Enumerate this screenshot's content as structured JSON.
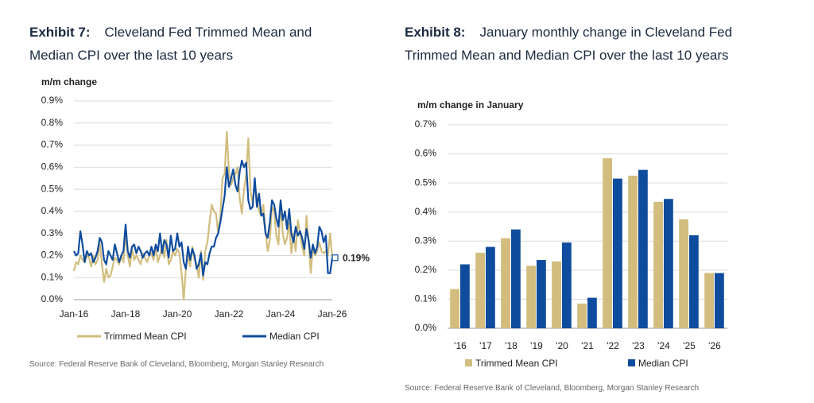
{
  "chart_data": [
    {
      "type": "line",
      "exhibit": "Exhibit 7:",
      "title": "Cleveland Fed Trimmed Mean and Median CPI over the last 10 years",
      "y_label": "m/m change",
      "source": "Source: Federal Reserve Bank of Cleveland, Bloomberg, Morgan Stanley Research",
      "categories": [
        "Jan-16",
        null,
        null,
        null,
        null,
        null,
        null,
        null,
        null,
        null,
        null,
        null,
        null,
        null,
        null,
        null,
        null,
        null,
        null,
        null,
        null,
        null,
        null,
        null,
        "Jan-18",
        null,
        null,
        null,
        null,
        null,
        null,
        null,
        null,
        null,
        null,
        null,
        null,
        null,
        null,
        null,
        null,
        null,
        null,
        null,
        null,
        null,
        null,
        null,
        "Jan-20",
        null,
        null,
        null,
        null,
        null,
        null,
        null,
        null,
        null,
        null,
        null,
        null,
        null,
        null,
        null,
        null,
        null,
        null,
        null,
        null,
        null,
        null,
        null,
        "Jan-22",
        null,
        null,
        null,
        null,
        null,
        null,
        null,
        null,
        null,
        null,
        null,
        null,
        null,
        null,
        null,
        null,
        null,
        null,
        null,
        null,
        null,
        null,
        null,
        "Jan-24",
        null,
        null,
        null,
        null,
        null,
        null,
        null,
        null,
        null,
        null,
        null,
        null,
        null,
        null,
        null,
        null,
        null,
        null,
        null,
        null,
        null,
        null,
        null,
        "Jan-26"
      ],
      "series": [
        {
          "name": "Trimmed Mean CPI",
          "color": "#d2bd7e",
          "values": [
            0.13,
            0.17,
            0.16,
            0.2,
            0.18,
            0.17,
            0.2,
            0.19,
            0.15,
            0.2,
            0.16,
            0.18,
            0.26,
            0.16,
            0.08,
            0.14,
            0.1,
            0.11,
            0.15,
            0.19,
            0.18,
            0.16,
            0.2,
            0.17,
            0.31,
            0.2,
            0.15,
            0.23,
            0.18,
            0.2,
            0.18,
            0.16,
            0.21,
            0.19,
            0.17,
            0.2,
            0.21,
            0.18,
            0.24,
            0.17,
            0.2,
            0.25,
            0.19,
            0.27,
            0.16,
            0.18,
            0.22,
            0.2,
            0.23,
            0.21,
            0.12,
            0.0,
            0.14,
            0.2,
            0.15,
            0.24,
            0.18,
            0.16,
            0.1,
            0.22,
            0.09,
            0.22,
            0.26,
            0.35,
            0.43,
            0.4,
            0.39,
            0.3,
            0.38,
            0.55,
            0.57,
            0.76,
            0.58,
            0.52,
            0.55,
            0.57,
            0.6,
            0.46,
            0.39,
            0.5,
            0.56,
            0.73,
            0.49,
            0.44,
            0.52,
            0.46,
            0.4,
            0.38,
            0.43,
            0.31,
            0.22,
            0.27,
            0.42,
            0.4,
            0.29,
            0.25,
            0.44,
            0.3,
            0.25,
            0.28,
            0.35,
            0.21,
            0.3,
            0.22,
            0.36,
            0.3,
            0.24,
            0.2,
            0.38,
            0.26,
            0.12,
            0.24,
            0.2,
            0.22,
            0.26,
            0.22,
            0.21,
            0.22,
            0.2,
            0.3,
            0.19
          ]
        },
        {
          "name": "Median CPI",
          "color": "#0f4c9e",
          "values": [
            0.22,
            0.2,
            0.21,
            0.31,
            0.25,
            0.17,
            0.22,
            0.2,
            0.21,
            0.17,
            0.19,
            0.22,
            0.28,
            0.26,
            0.18,
            0.16,
            0.22,
            0.2,
            0.18,
            0.25,
            0.21,
            0.17,
            0.2,
            0.22,
            0.34,
            0.22,
            0.19,
            0.24,
            0.25,
            0.21,
            0.24,
            0.22,
            0.19,
            0.21,
            0.22,
            0.2,
            0.24,
            0.2,
            0.25,
            0.22,
            0.3,
            0.21,
            0.27,
            0.25,
            0.19,
            0.29,
            0.22,
            0.23,
            0.3,
            0.24,
            0.26,
            0.17,
            0.14,
            0.24,
            0.18,
            0.23,
            0.2,
            0.14,
            0.16,
            0.21,
            0.11,
            0.17,
            0.16,
            0.21,
            0.24,
            0.24,
            0.28,
            0.3,
            0.35,
            0.41,
            0.47,
            0.6,
            0.51,
            0.55,
            0.59,
            0.52,
            0.49,
            0.58,
            0.63,
            0.6,
            0.62,
            0.45,
            0.41,
            0.42,
            0.55,
            0.42,
            0.48,
            0.38,
            0.39,
            0.3,
            0.28,
            0.35,
            0.45,
            0.43,
            0.37,
            0.33,
            0.45,
            0.36,
            0.4,
            0.32,
            0.41,
            0.3,
            0.26,
            0.33,
            0.29,
            0.31,
            0.28,
            0.23,
            0.32,
            0.27,
            0.19,
            0.25,
            0.21,
            0.24,
            0.33,
            0.31,
            0.26,
            0.29,
            0.12,
            0.12,
            0.19
          ]
        }
      ],
      "annotation": {
        "value": 0.19,
        "label": "0.19%"
      },
      "ylim": [
        0,
        0.9
      ],
      "yticks": [
        {
          "value": 0,
          "label": "0.0%"
        },
        {
          "value": 0.1,
          "label": "0.1%"
        },
        {
          "value": 0.2,
          "label": "0.2%"
        },
        {
          "value": 0.3,
          "label": "0.3%"
        },
        {
          "value": 0.4,
          "label": "0.4%"
        },
        {
          "value": 0.5,
          "label": "0.5%"
        },
        {
          "value": 0.6,
          "label": "0.6%"
        },
        {
          "value": 0.7,
          "label": "0.7%"
        },
        {
          "value": 0.8,
          "label": "0.8%"
        },
        {
          "value": 0.9,
          "label": "0.9%"
        }
      ],
      "grid": true
    },
    {
      "type": "bar",
      "exhibit": "Exhibit 8:",
      "title": "January monthly change in Cleveland Fed Trimmed Mean and Median CPI over the last 10 years",
      "y_label": "m/m change in January",
      "source": "Source: Federal Reserve Bank of Cleveland, Bloomberg, Morgan Stanley Research",
      "categories": [
        "'16",
        "'17",
        "'18",
        "'19",
        "'20",
        "'21",
        "'22",
        "'23",
        "'24",
        "'25",
        "'26"
      ],
      "series": [
        {
          "name": "Trimmed Mean CPI",
          "color": "#d2bd7e",
          "values": [
            0.135,
            0.26,
            0.31,
            0.215,
            0.23,
            0.085,
            0.585,
            0.525,
            0.435,
            0.375,
            0.19
          ]
        },
        {
          "name": "Median CPI",
          "color": "#0f4c9e",
          "values": [
            0.22,
            0.28,
            0.34,
            0.235,
            0.295,
            0.105,
            0.515,
            0.545,
            0.445,
            0.32,
            0.19
          ]
        }
      ],
      "ylim": [
        0,
        0.7
      ],
      "yticks": [
        {
          "value": 0,
          "label": "0.0%"
        },
        {
          "value": 0.1,
          "label": "0.1%"
        },
        {
          "value": 0.2,
          "label": "0.2%"
        },
        {
          "value": 0.3,
          "label": "0.3%"
        },
        {
          "value": 0.4,
          "label": "0.4%"
        },
        {
          "value": 0.5,
          "label": "0.5%"
        },
        {
          "value": 0.6,
          "label": "0.6%"
        },
        {
          "value": 0.7,
          "label": "0.7%"
        }
      ],
      "grid": true
    }
  ]
}
